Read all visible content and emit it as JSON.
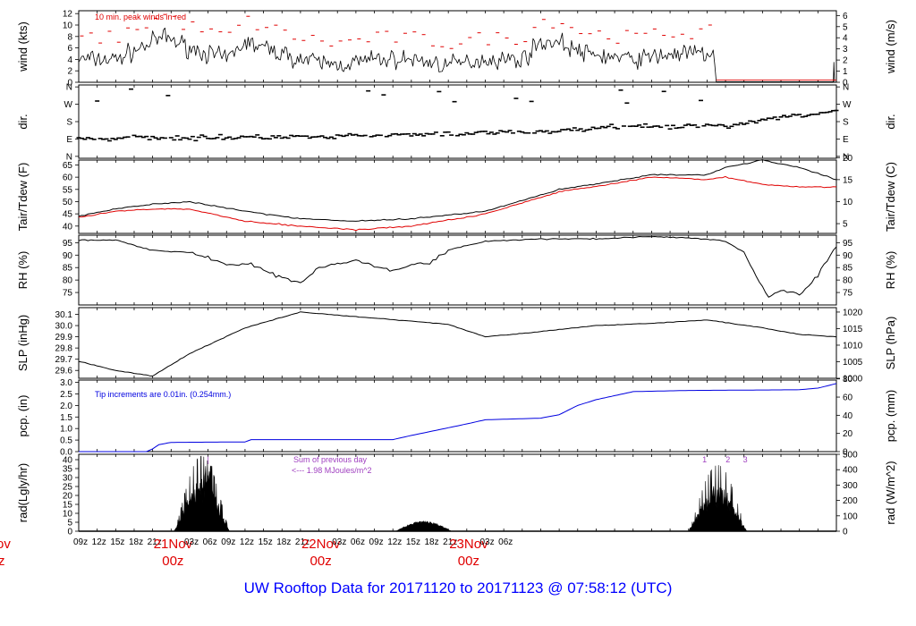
{
  "title": "UW Rooftop Data for 20171120  to  20171123 @ 07:58:12  (UTC)",
  "colors": {
    "data": "#000000",
    "peak": "#e00000",
    "dew": "#e00000",
    "pcp": "#0000e0",
    "annot": "#a040c0",
    "title": "#0000ff",
    "daylabel": "#e00000"
  },
  "time_axis": {
    "hours": [
      "09z",
      "12z",
      "15z",
      "18z",
      "21z",
      "21Nov",
      "03z",
      "06z",
      "09z",
      "12z",
      "15z",
      "18z",
      "21z",
      "22Nov",
      "03z",
      "06z",
      "09z",
      "12z",
      "15z",
      "18z",
      "21z",
      "23Nov",
      "03z",
      "06z"
    ],
    "day_sub": "00z",
    "left_edge_labels": [
      "ov",
      "z"
    ]
  },
  "chart_data": [
    {
      "type": "line",
      "panel": "wind",
      "ylabel_left": "wind (kts)",
      "ylabel_right": "wind (m/s)",
      "ylim": [
        0,
        12.5
      ],
      "yticks_left": [
        "0",
        "2",
        "4",
        "6",
        "8",
        "10",
        "12"
      ],
      "yticks_right": [
        "0",
        "1",
        "2",
        "3",
        "4",
        "5",
        "6"
      ],
      "annotation": "10 min. peak winds in red",
      "series": [
        {
          "name": "10 min. peak winds"
        }
      ]
    },
    {
      "type": "scatter",
      "panel": "dir",
      "ylabel_left": "dir.",
      "ylabel_right": "dir.",
      "yticks_left": [
        "N",
        "E",
        "S",
        "W",
        "N"
      ],
      "yticks_right": [
        "N",
        "E",
        "S",
        "W",
        "N"
      ]
    },
    {
      "type": "line",
      "panel": "temp",
      "ylabel_left": "Tair/Tdew (F)",
      "ylabel_right": "Tair/Tdew (C)",
      "ylim": [
        37,
        67
      ],
      "yticks_left": [
        "40",
        "45",
        "50",
        "55",
        "60",
        "65"
      ],
      "yticks_right": [
        "5",
        "10",
        "15",
        "20"
      ],
      "tair_key": [
        [
          0,
          44
        ],
        [
          6,
          47
        ],
        [
          12,
          49
        ],
        [
          18,
          50
        ],
        [
          27,
          46
        ],
        [
          36,
          43
        ],
        [
          45,
          42
        ],
        [
          54,
          43
        ],
        [
          66,
          46
        ],
        [
          78,
          55
        ],
        [
          86,
          58
        ],
        [
          93,
          61
        ],
        [
          102,
          61
        ],
        [
          105,
          64
        ],
        [
          111,
          67
        ],
        [
          117,
          64
        ],
        [
          123,
          59
        ]
      ],
      "tdew_key": [
        [
          0,
          43.5
        ],
        [
          6,
          46
        ],
        [
          12,
          47
        ],
        [
          18,
          47
        ],
        [
          27,
          42
        ],
        [
          36,
          40
        ],
        [
          45,
          38.5
        ],
        [
          54,
          40
        ],
        [
          66,
          45
        ],
        [
          78,
          54
        ],
        [
          86,
          57
        ],
        [
          93,
          60
        ],
        [
          102,
          59
        ],
        [
          105,
          60
        ],
        [
          111,
          57
        ],
        [
          117,
          56
        ],
        [
          123,
          56
        ]
      ]
    },
    {
      "type": "line",
      "panel": "rh",
      "ylabel_left": "RH (%)",
      "ylabel_right": "RH (%)",
      "ylim": [
        70,
        98
      ],
      "yticks_left": [
        "75",
        "80",
        "85",
        "90",
        "95"
      ],
      "yticks_right": [
        "75",
        "80",
        "85",
        "90",
        "95"
      ],
      "key": [
        [
          0,
          96
        ],
        [
          6,
          96
        ],
        [
          12,
          92
        ],
        [
          18,
          91
        ],
        [
          21,
          89
        ],
        [
          24,
          86
        ],
        [
          28,
          86
        ],
        [
          33,
          81
        ],
        [
          36,
          79
        ],
        [
          39,
          85
        ],
        [
          45,
          88
        ],
        [
          51,
          84
        ],
        [
          54,
          86
        ],
        [
          57,
          87
        ],
        [
          60,
          92
        ],
        [
          66,
          95.5
        ],
        [
          75,
          96.5
        ],
        [
          84,
          96.5
        ],
        [
          93,
          97.5
        ],
        [
          102,
          96.5
        ],
        [
          105,
          95.5
        ],
        [
          108,
          91
        ],
        [
          111,
          77
        ],
        [
          112,
          73
        ],
        [
          114,
          76
        ],
        [
          117,
          74
        ],
        [
          120,
          82
        ],
        [
          123,
          94
        ],
        [
          124,
          96
        ],
        [
          126,
          93
        ]
      ]
    },
    {
      "type": "line",
      "panel": "slp",
      "ylabel_left": "SLP (inHg)",
      "ylabel_right": "SLP (hPa)",
      "ylim": [
        29.53,
        30.16
      ],
      "yticks_left": [
        "29.6",
        "29.7",
        "29.8",
        "29.9",
        "30.0",
        "30.1"
      ],
      "yticks_right": [
        "1000",
        "1005",
        "1010",
        "1015",
        "1020"
      ],
      "key": [
        [
          0,
          29.68
        ],
        [
          6,
          29.6
        ],
        [
          12,
          29.55
        ],
        [
          18,
          29.75
        ],
        [
          27,
          29.98
        ],
        [
          36,
          30.12
        ],
        [
          45,
          30.08
        ],
        [
          54,
          30.04
        ],
        [
          60,
          30.01
        ],
        [
          66,
          29.9
        ],
        [
          72,
          29.93
        ],
        [
          84,
          30.0
        ],
        [
          93,
          30.02
        ],
        [
          102,
          30.05
        ],
        [
          111,
          29.98
        ],
        [
          117,
          29.92
        ],
        [
          123,
          29.9
        ]
      ]
    },
    {
      "type": "line",
      "panel": "pcp",
      "ylabel_left": "pcp. (in)",
      "ylabel_right": "pcp. (mm)",
      "ylim": [
        0,
        3.1
      ],
      "yticks_left": [
        "0.0",
        "0.5",
        "1.0",
        "1.5",
        "2.0",
        "2.5",
        "3.0"
      ],
      "yticks_right": [
        "0",
        "20",
        "40",
        "60",
        "80"
      ],
      "annotation": "Tip increments are 0.01in. (0.254mm.)",
      "key": [
        [
          0,
          0
        ],
        [
          11,
          0
        ],
        [
          12,
          0.12
        ],
        [
          13,
          0.3
        ],
        [
          15,
          0.4
        ],
        [
          27,
          0.42
        ],
        [
          28,
          0.52
        ],
        [
          51,
          0.52
        ],
        [
          54,
          0.7
        ],
        [
          63,
          1.2
        ],
        [
          66,
          1.38
        ],
        [
          75,
          1.45
        ],
        [
          78,
          1.6
        ],
        [
          81,
          2.0
        ],
        [
          84,
          2.25
        ],
        [
          90,
          2.6
        ],
        [
          99,
          2.65
        ],
        [
          117,
          2.68
        ],
        [
          120,
          2.75
        ],
        [
          123,
          2.95
        ],
        [
          126,
          3.0
        ]
      ]
    },
    {
      "type": "area",
      "panel": "rad",
      "ylabel_left": "rad(Lgly/hr)",
      "ylabel_right": "rad (W/m^2)",
      "ylim": [
        0,
        43
      ],
      "yticks_left": [
        "0",
        "5",
        "10",
        "15",
        "20",
        "25",
        "30",
        "35",
        "40"
      ],
      "yticks_right": [
        "0",
        "100",
        "200",
        "300",
        "400",
        "500"
      ],
      "annotation": "Sum of previous day",
      "annotation2": "<--- 1.98 MJoules/m^2",
      "day_markers": [
        "1",
        "2",
        "3"
      ],
      "day_peaks": [
        {
          "start": 15.5,
          "end": 24.5,
          "peak": 42
        },
        {
          "start": 51.5,
          "end": 60.5,
          "peak": 5
        },
        {
          "start": 99.0,
          "end": 108.5,
          "peak": 37
        }
      ]
    }
  ]
}
